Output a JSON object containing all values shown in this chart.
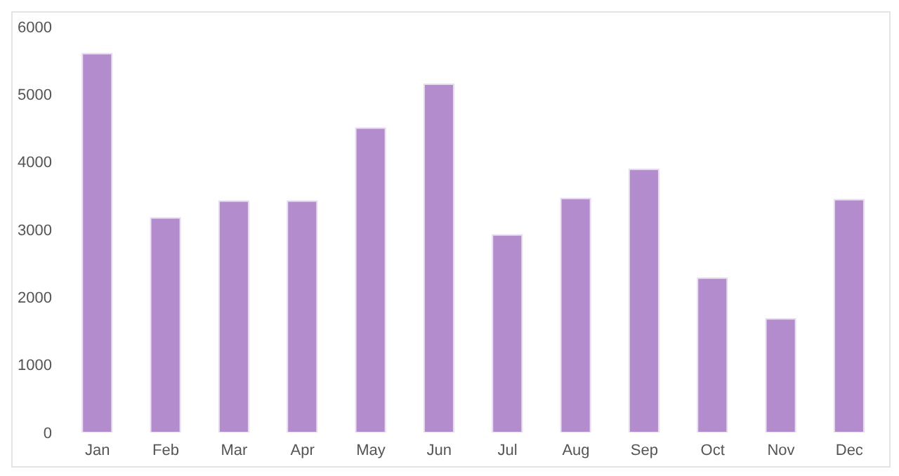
{
  "chart_data": {
    "type": "bar",
    "categories": [
      "Jan",
      "Feb",
      "Mar",
      "Apr",
      "May",
      "Jun",
      "Jul",
      "Aug",
      "Sep",
      "Oct",
      "Nov",
      "Dec"
    ],
    "values": [
      5600,
      3170,
      3420,
      3420,
      4500,
      5150,
      2920,
      3460,
      3890,
      2280,
      1680,
      3440
    ],
    "color": "#b28ccc",
    "ylim": [
      0,
      6000
    ],
    "yticks": [
      0,
      1000,
      2000,
      3000,
      4000,
      5000,
      6000
    ],
    "grid": false,
    "legend": false
  }
}
